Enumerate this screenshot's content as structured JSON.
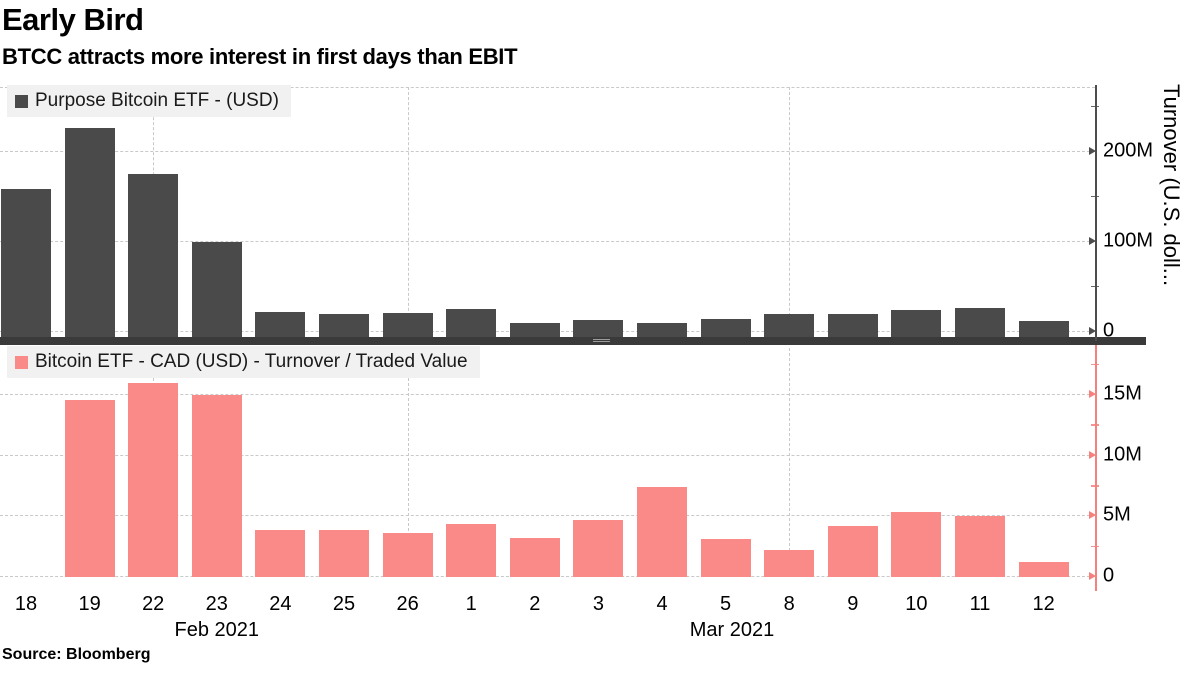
{
  "header": {
    "title": "Early Bird",
    "subtitle": "BTCC attracts more interest in first days than EBIT"
  },
  "source": "Source: Bloomberg",
  "x_axis": {
    "categories": [
      "18",
      "19",
      "22",
      "23",
      "24",
      "25",
      "26",
      "1",
      "2",
      "3",
      "4",
      "5",
      "8",
      "9",
      "10",
      "11",
      "12"
    ],
    "month_labels": [
      {
        "label": "Feb 2021",
        "center_index": 3
      },
      {
        "label": "Mar 2021",
        "center_index": 11.1
      }
    ]
  },
  "grid": {
    "vertical_at_category_indices": [
      2,
      6,
      12
    ],
    "horizontal": true
  },
  "chart_data": [
    {
      "type": "bar",
      "panel": "top",
      "series_name": "Purpose Bitcoin ETF - (USD)",
      "color": "#4a4a4a",
      "axis_color": "#4d4d4d",
      "unit": "million U.S. dollars",
      "ylabel": "Turnover (U.S. doll...",
      "categories": [
        "18",
        "19",
        "22",
        "23",
        "24",
        "25",
        "26",
        "1",
        "2",
        "3",
        "4",
        "5",
        "8",
        "9",
        "10",
        "11",
        "12"
      ],
      "values": [
        164,
        232,
        181,
        106,
        28,
        26,
        27,
        31,
        16,
        19,
        16,
        20,
        25,
        26,
        30,
        32,
        18
      ],
      "ylim": [
        0,
        271
      ],
      "yticks": [
        {
          "value": 0,
          "label": "0"
        },
        {
          "value": 100,
          "label": "100M"
        },
        {
          "value": 200,
          "label": "200M"
        }
      ],
      "yminor_ticks": [
        50,
        150,
        250
      ],
      "legend_position": "top-left"
    },
    {
      "type": "bar",
      "panel": "bottom",
      "series_name": "Bitcoin ETF - CAD (USD) - Turnover / Traded Value",
      "color": "#fa8a88",
      "axis_color": "#f5807d",
      "unit": "million U.S. dollars",
      "categories": [
        "18",
        "19",
        "22",
        "23",
        "24",
        "25",
        "26",
        "1",
        "2",
        "3",
        "4",
        "5",
        "8",
        "9",
        "10",
        "11",
        "12"
      ],
      "values": [
        0,
        14.6,
        16.0,
        15.0,
        3.9,
        3.9,
        3.6,
        4.4,
        3.2,
        4.7,
        7.4,
        3.1,
        2.2,
        4.2,
        5.4,
        5.0,
        1.2
      ],
      "ylim": [
        0,
        18.8
      ],
      "yticks": [
        {
          "value": 0,
          "label": "0"
        },
        {
          "value": 5,
          "label": "5M"
        },
        {
          "value": 10,
          "label": "10M"
        },
        {
          "value": 15,
          "label": "15M"
        }
      ],
      "yminor_ticks": [
        2.5,
        7.5,
        12.5,
        17.5
      ],
      "legend_position": "top-left"
    }
  ]
}
